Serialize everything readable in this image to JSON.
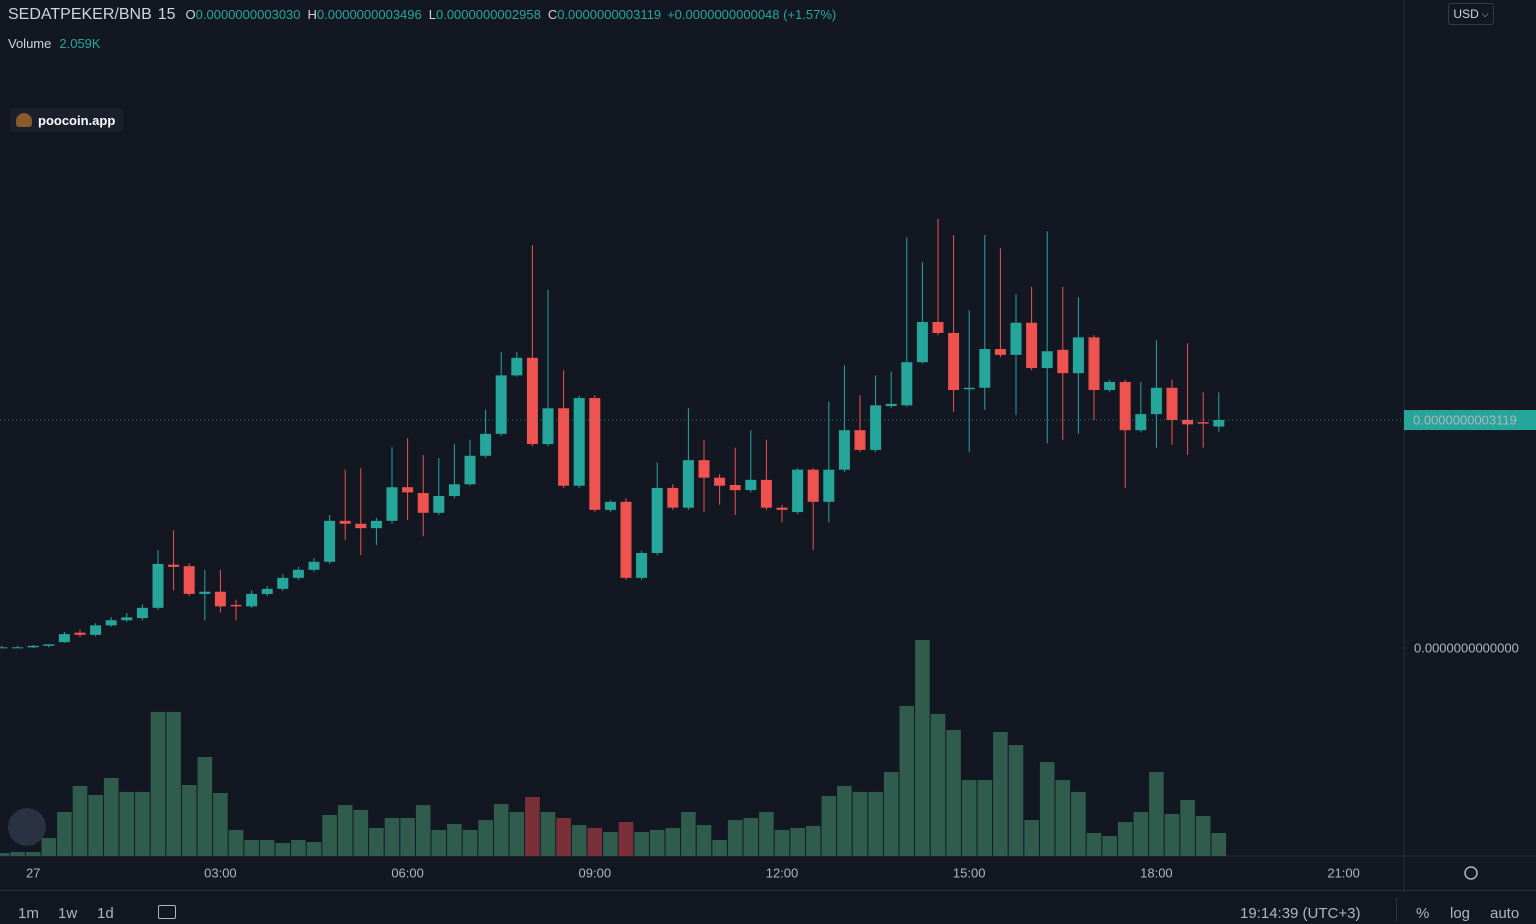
{
  "chart_data": {
    "type": "candlestick",
    "header": {
      "symbol": "SEDATPEKER/BNB",
      "interval": "15",
      "ohlc": [
        {
          "key": "O",
          "value": "0.0000000003030"
        },
        {
          "key": "H",
          "value": "0.0000000003496"
        },
        {
          "key": "L",
          "value": "0.0000000002958"
        },
        {
          "key": "C",
          "value": "0.0000000003119"
        }
      ],
      "change": "+0.0000000000048 (+1.57%)",
      "volume_key": "Volume",
      "volume": "2.059K"
    },
    "categories": [
      null,
      null,
      "27",
      null,
      null,
      null,
      null,
      null,
      null,
      null,
      null,
      null,
      null,
      null,
      "03:00",
      null,
      null,
      null,
      null,
      null,
      null,
      null,
      null,
      null,
      null,
      null,
      "06:00",
      null,
      null,
      null,
      null,
      null,
      null,
      null,
      null,
      null,
      null,
      null,
      "09:00",
      null,
      null,
      null,
      null,
      null,
      null,
      null,
      null,
      null,
      null,
      null,
      "12:00",
      null,
      null,
      null,
      null,
      null,
      null,
      null,
      null,
      null,
      null,
      null,
      "15:00",
      null,
      null,
      null,
      null,
      null,
      null,
      null,
      null,
      null,
      null,
      null,
      "18:00",
      null,
      null,
      null,
      null,
      null,
      null,
      null,
      null,
      null,
      null,
      null,
      "21:00",
      null,
      null,
      null
    ],
    "open": [
      0,
      1e-12,
      1e-12,
      3e-12,
      8e-12,
      2.1e-11,
      1.8e-11,
      3.1e-11,
      3.8e-11,
      4.1e-11,
      5.5e-11,
      1.14e-10,
      1.12e-10,
      7.4e-11,
      7.7e-11,
      5.9e-11,
      5.7e-11,
      7.4e-11,
      8.1e-11,
      9.6e-11,
      1.07e-10,
      1.18e-10,
      1.74e-10,
      1.7e-10,
      1.64e-10,
      1.74e-10,
      2.2e-10,
      2.12e-10,
      1.85e-10,
      2.08e-10,
      2.24e-10,
      2.63e-10,
      2.93e-10,
      3.73e-10,
      3.97e-10,
      2.79e-10,
      3.28e-10,
      2.22e-10,
      3.42e-10,
      1.89e-10,
      2e-10,
      9.6e-11,
      1.3e-10,
      2.19e-10,
      1.92e-10,
      2.57e-10,
      2.33e-10,
      2.23e-10,
      2.16e-10,
      2.3e-10,
      1.92e-10,
      1.86e-10,
      2.44e-10,
      2e-10,
      2.44e-10,
      2.98e-10,
      2.71e-10,
      3.31e-10,
      3.32e-10,
      3.91e-10,
      4.46e-10,
      4.31e-10,
      3.54e-10,
      3.56e-10,
      4.09e-10,
      4.01e-10,
      4.45e-10,
      3.83e-10,
      4.08e-10,
      3.76e-10,
      4.25e-10,
      3.53e-10,
      3.64e-10,
      2.98e-10,
      3.2e-10,
      3.56e-10,
      3.12e-10,
      3.09e-10,
      3.03e-10,
      null,
      null,
      null,
      null,
      null,
      null,
      null,
      null,
      null,
      null,
      null
    ],
    "high": [
      3e-12,
      3e-12,
      4e-12,
      5e-12,
      2.2e-11,
      2.5e-11,
      3.4e-11,
      4.2e-11,
      4.8e-11,
      6e-11,
      1.34e-10,
      1.61e-10,
      1.16e-10,
      1.07e-10,
      1.07e-10,
      6.6e-11,
      7.9e-11,
      8.5e-11,
      1.01e-10,
      1.11e-10,
      1.23e-10,
      1.82e-10,
      2.44e-10,
      2.46e-10,
      1.78e-10,
      2.75e-10,
      2.87e-10,
      2.64e-10,
      2.6e-10,
      2.79e-10,
      2.85e-10,
      3.26e-10,
      4.05e-10,
      4.05e-10,
      5.51e-10,
      4.9e-10,
      3.8e-10,
      3.45e-10,
      3.46e-10,
      2.02e-10,
      2.05e-10,
      1.33e-10,
      2.54e-10,
      2.24e-10,
      3.28e-10,
      2.85e-10,
      2.38e-10,
      2.74e-10,
      2.98e-10,
      2.85e-10,
      1.96e-10,
      2.46e-10,
      2.46e-10,
      3.37e-10,
      3.87e-10,
      3.46e-10,
      3.73e-10,
      3.78e-10,
      5.62e-10,
      5.28e-10,
      5.87e-10,
      5.65e-10,
      4.62e-10,
      5.65e-10,
      5.47e-10,
      4.84e-10,
      4.94e-10,
      5.7e-10,
      4.94e-10,
      4.8e-10,
      4.28e-10,
      3.67e-10,
      3.67e-10,
      3.64e-10,
      4.21e-10,
      3.67e-10,
      4.17e-10,
      3.5e-10,
      3.496e-10,
      null,
      null,
      null,
      null,
      null,
      null,
      null,
      null,
      null,
      null,
      null
    ],
    "low": [
      0,
      0,
      0,
      1e-12,
      7e-12,
      1.5e-11,
      1.6e-11,
      2.9e-11,
      3.6e-11,
      3.8e-11,
      5.2e-11,
      7.9e-11,
      7.1e-11,
      3.8e-11,
      4.9e-11,
      3.8e-11,
      5.5e-11,
      7.1e-11,
      7.8e-11,
      9.3e-11,
      1.04e-10,
      1.15e-10,
      1.48e-10,
      1.27e-10,
      1.41e-10,
      1.7e-10,
      1.75e-10,
      1.53e-10,
      1.82e-10,
      2.05e-10,
      2.22e-10,
      2.6e-10,
      2.9e-10,
      3.71e-10,
      2.76e-10,
      2.76e-10,
      2.19e-10,
      2.19e-10,
      1.86e-10,
      1.86e-10,
      9.3e-11,
      9.3e-11,
      1.27e-10,
      1.89e-10,
      1.89e-10,
      1.86e-10,
      1.96e-10,
      1.82e-10,
      2.13e-10,
      1.89e-10,
      1.72e-10,
      1.83e-10,
      1.34e-10,
      1.72e-10,
      2.41e-10,
      2.68e-10,
      2.68e-10,
      3.28e-10,
      3.3e-10,
      3.89e-10,
      4.28e-10,
      3.23e-10,
      2.68e-10,
      3.26e-10,
      3.98e-10,
      3.19e-10,
      3.8e-10,
      2.8e-10,
      2.85e-10,
      2.93e-10,
      3.12e-10,
      3.5e-10,
      2.19e-10,
      2.95e-10,
      2.74e-10,
      2.78e-10,
      2.64e-10,
      2.74e-10,
      2.958e-10,
      null,
      null,
      null,
      null,
      null,
      null,
      null,
      null,
      null,
      null,
      null
    ],
    "close": [
      1e-12,
      1e-12,
      3e-12,
      5e-12,
      1.9e-11,
      1.8e-11,
      3.1e-11,
      3.8e-11,
      4.2e-11,
      5.5e-11,
      1.15e-10,
      1.11e-10,
      7.4e-11,
      7.7e-11,
      5.7e-11,
      5.7e-11,
      7.4e-11,
      8.1e-11,
      9.6e-11,
      1.07e-10,
      1.18e-10,
      1.74e-10,
      1.7e-10,
      1.64e-10,
      1.74e-10,
      2.2e-10,
      2.13e-10,
      1.85e-10,
      2.08e-10,
      2.24e-10,
      2.63e-10,
      2.93e-10,
      3.73e-10,
      3.97e-10,
      2.79e-10,
      3.28e-10,
      2.22e-10,
      3.42e-10,
      1.89e-10,
      2e-10,
      9.6e-11,
      1.3e-10,
      2.19e-10,
      1.92e-10,
      2.57e-10,
      2.33e-10,
      2.22e-10,
      2.16e-10,
      2.3e-10,
      1.92e-10,
      1.89e-10,
      2.44e-10,
      2e-10,
      2.44e-10,
      2.98e-10,
      2.71e-10,
      3.32e-10,
      3.34e-10,
      3.91e-10,
      4.46e-10,
      4.31e-10,
      3.53e-10,
      3.56e-10,
      4.09e-10,
      4.01e-10,
      4.45e-10,
      3.83e-10,
      4.06e-10,
      3.76e-10,
      4.25e-10,
      3.53e-10,
      3.64e-10,
      2.98e-10,
      3.2e-10,
      3.56e-10,
      3.12e-10,
      3.06e-10,
      3.07e-10,
      3.119e-10,
      null,
      null,
      null,
      null,
      null,
      null,
      null,
      null,
      null,
      null,
      null
    ],
    "volume": [
      270,
      360,
      360,
      1610,
      3940,
      6270,
      5460,
      6980,
      5730,
      5730,
      12890,
      12890,
      6350,
      8860,
      5640,
      2330,
      1430,
      1430,
      1160,
      1430,
      1250,
      3670,
      4560,
      4120,
      2510,
      3400,
      3400,
      4560,
      2330,
      2860,
      2330,
      3220,
      4650,
      3940,
      5280,
      3940,
      3400,
      2770,
      2510,
      2150,
      3040,
      2150,
      2330,
      2510,
      3940,
      2770,
      1430,
      3220,
      3400,
      3940,
      2330,
      2510,
      2690,
      5370,
      6270,
      5730,
      5730,
      7520,
      13430,
      19330,
      12710,
      11280,
      6800,
      6800,
      11100,
      9930,
      3220,
      8410,
      6800,
      5730,
      2060,
      1790,
      3040,
      3940,
      7520,
      3760,
      5010,
      3580,
      2059,
      null,
      null,
      null,
      null,
      null,
      null,
      null,
      null,
      null,
      null,
      null
    ],
    "volume_colors": [
      "#2f5c4d",
      "#2f5c4d",
      "#2f5c4d",
      "#2f5c4d",
      "#2f5c4d",
      "#2f5c4d",
      "#2f5c4d",
      "#2f5c4d",
      "#2f5c4d",
      "#2f5c4d",
      "#2f5c4d",
      "#2f5c4d",
      "#2f5c4d",
      "#2f5c4d",
      "#2f5c4d",
      "#2f5c4d",
      "#2f5c4d",
      "#2f5c4d",
      "#2f5c4d",
      "#2f5c4d",
      "#2f5c4d",
      "#2f5c4d",
      "#2f5c4d",
      "#2f5c4d",
      "#2f5c4d",
      "#2f5c4d",
      "#2f5c4d",
      "#2f5c4d",
      "#2f5c4d",
      "#2f5c4d",
      "#2f5c4d",
      "#2f5c4d",
      "#2f5c4d",
      "#2f5c4d",
      "#7a3039",
      "#2f5c4d",
      "#7a3039",
      "#2f5c4d",
      "#7a3039",
      "#2f5c4d",
      "#7a3039",
      "#2f5c4d",
      "#2f5c4d",
      "#2f5c4d",
      "#2f5c4d",
      "#2f5c4d",
      "#2f5c4d",
      "#2f5c4d",
      "#2f5c4d",
      "#2f5c4d",
      "#2f5c4d",
      "#2f5c4d",
      "#2f5c4d",
      "#2f5c4d",
      "#2f5c4d",
      "#2f5c4d",
      "#2f5c4d",
      "#2f5c4d",
      "#2f5c4d",
      "#2f5c4d",
      "#2f5c4d",
      "#2f5c4d",
      "#2f5c4d",
      "#2f5c4d",
      "#2f5c4d",
      "#2f5c4d",
      "#2f5c4d",
      "#2f5c4d",
      "#2f5c4d",
      "#2f5c4d",
      "#2f5c4d",
      "#2f5c4d",
      "#2f5c4d",
      "#2f5c4d",
      "#2f5c4d",
      "#2f5c4d",
      "#2f5c4d",
      "#2f5c4d",
      "#2f5c4d",
      null,
      null,
      null,
      null,
      null,
      null,
      null,
      null,
      null,
      null,
      null
    ],
    "up_color": "#26a69a",
    "down_color": "#ef5350",
    "ylim": [
      -2.845e-10,
      8.865e-10
    ],
    "yticks": [
      {
        "value": 0,
        "label": "0.0000000000000"
      }
    ],
    "volume_ylim": [
      0,
      76600
    ],
    "last_price": {
      "value": 3.119e-10,
      "label": "0.0000000003119"
    }
  },
  "ui": {
    "currency": "USD",
    "badge": "poocoin.app",
    "timeframes": [
      "1m",
      "1w",
      "1d"
    ],
    "clock": "19:14:39 (UTC+3)",
    "scale_options": [
      "%",
      "log",
      "auto"
    ]
  }
}
